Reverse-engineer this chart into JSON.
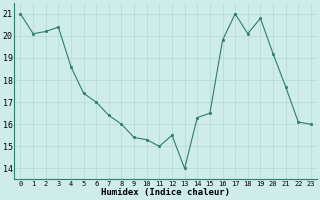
{
  "x": [
    0,
    1,
    2,
    3,
    4,
    5,
    6,
    7,
    8,
    9,
    10,
    11,
    12,
    13,
    14,
    15,
    16,
    17,
    18,
    19,
    20,
    21,
    22,
    23
  ],
  "y": [
    21,
    20.1,
    20.2,
    20.4,
    18.6,
    17.4,
    17.0,
    16.4,
    16.0,
    15.4,
    15.3,
    15.0,
    15.5,
    14.0,
    16.3,
    16.5,
    19.8,
    21.0,
    20.1,
    20.8,
    19.2,
    17.7,
    16.1,
    16.0
  ],
  "xlabel": "Humidex (Indice chaleur)",
  "ylim": [
    13.5,
    21.5
  ],
  "xlim": [
    -0.5,
    23.5
  ],
  "yticks": [
    14,
    15,
    16,
    17,
    18,
    19,
    20,
    21
  ],
  "xticks": [
    0,
    1,
    2,
    3,
    4,
    5,
    6,
    7,
    8,
    9,
    10,
    11,
    12,
    13,
    14,
    15,
    16,
    17,
    18,
    19,
    20,
    21,
    22,
    23
  ],
  "line_color": "#2e7d6e",
  "marker_color": "#2e7d6e",
  "bg_color": "#ceecea",
  "grid_color": "#b8dcd8"
}
